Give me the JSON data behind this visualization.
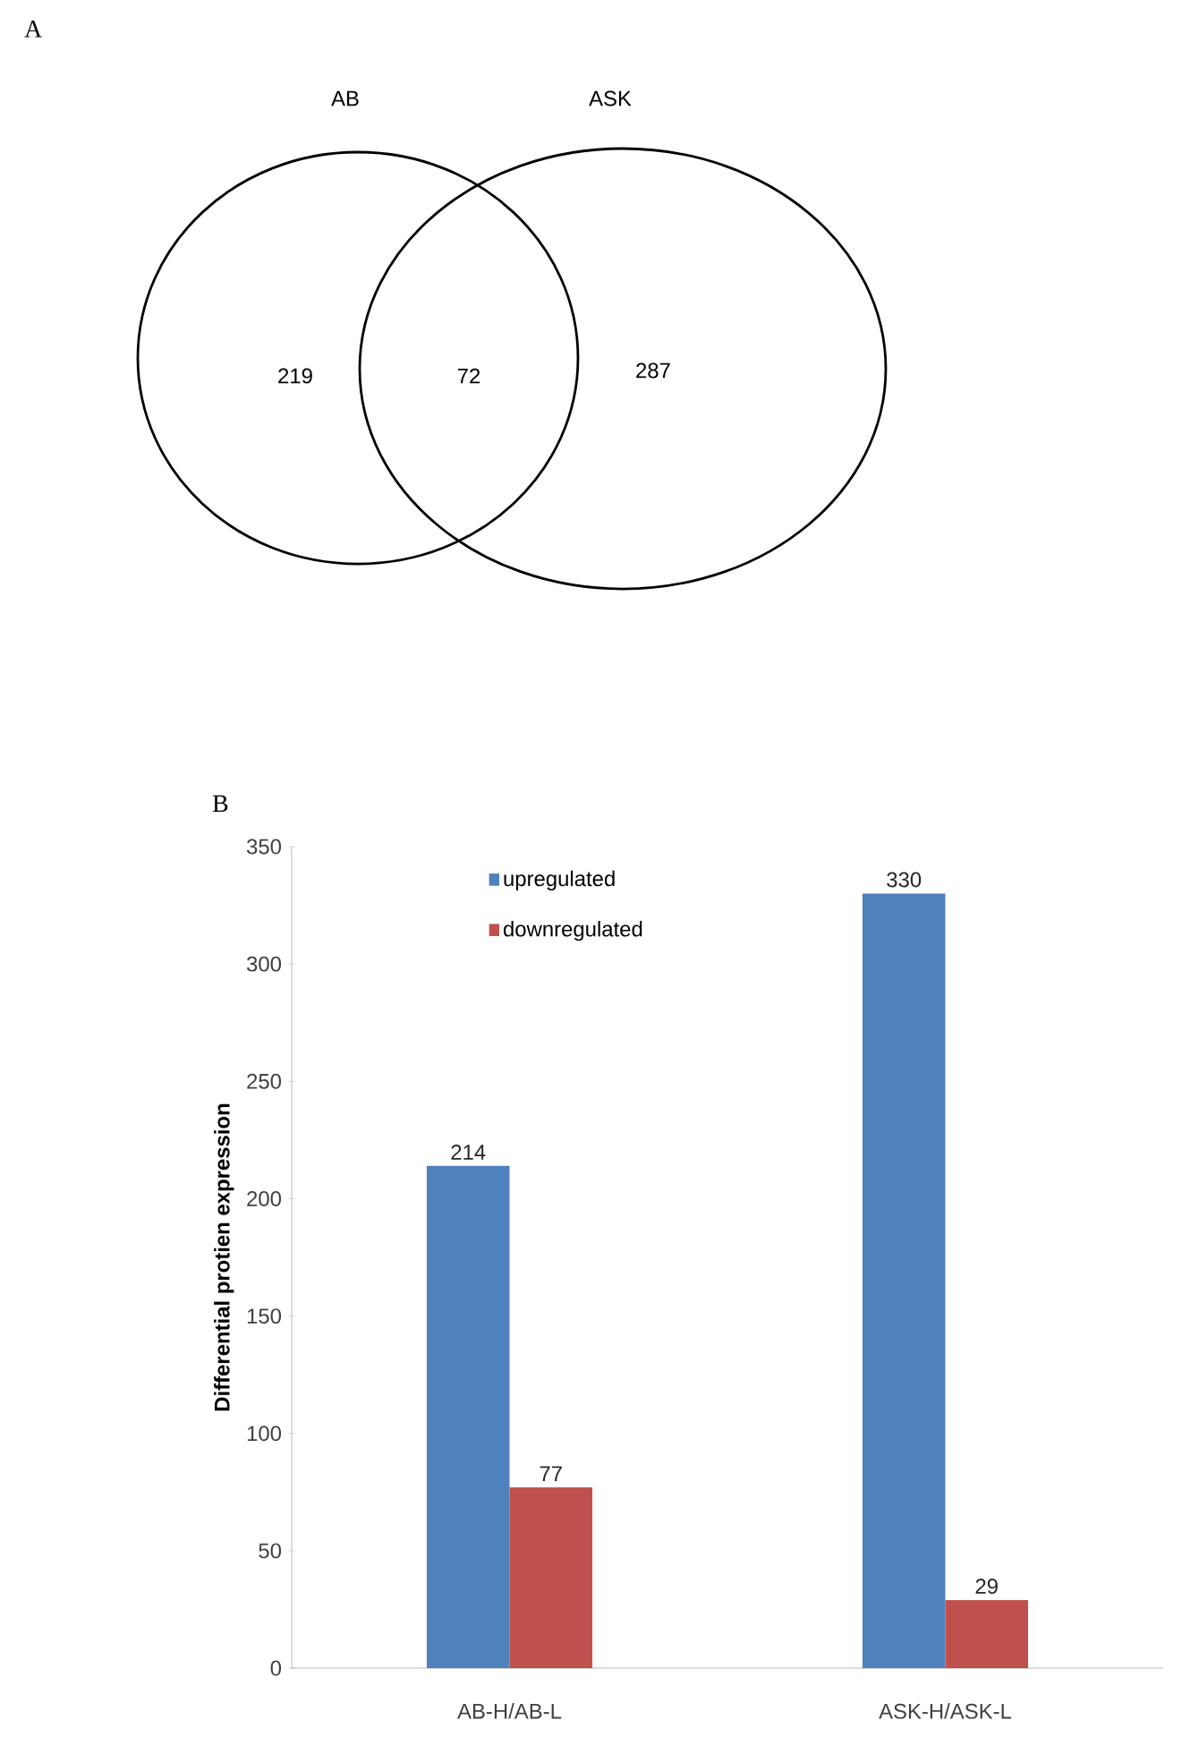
{
  "chart_data": [
    {
      "type": "other",
      "title": "A",
      "categories": [
        "AB",
        null,
        "ASK"
      ],
      "values": [
        219,
        72,
        287
      ],
      "data_labels": true
    },
    {
      "type": "bar",
      "title": "B",
      "ylabel": "Differential protien expression",
      "categories": [
        "AB-H/AB-L",
        "ASK-H/ASK-L"
      ],
      "series": [
        {
          "name": "upregulated",
          "color": "#4f81bd",
          "values": [
            214,
            330
          ]
        },
        {
          "name": "downregulated",
          "color": "#c0504d",
          "values": [
            77,
            29
          ]
        }
      ],
      "ylim": [
        0,
        350
      ],
      "yticks": [
        0,
        50,
        100,
        150,
        200,
        250,
        300,
        350
      ],
      "data_labels": true,
      "legend": "top",
      "grid": false
    }
  ]
}
